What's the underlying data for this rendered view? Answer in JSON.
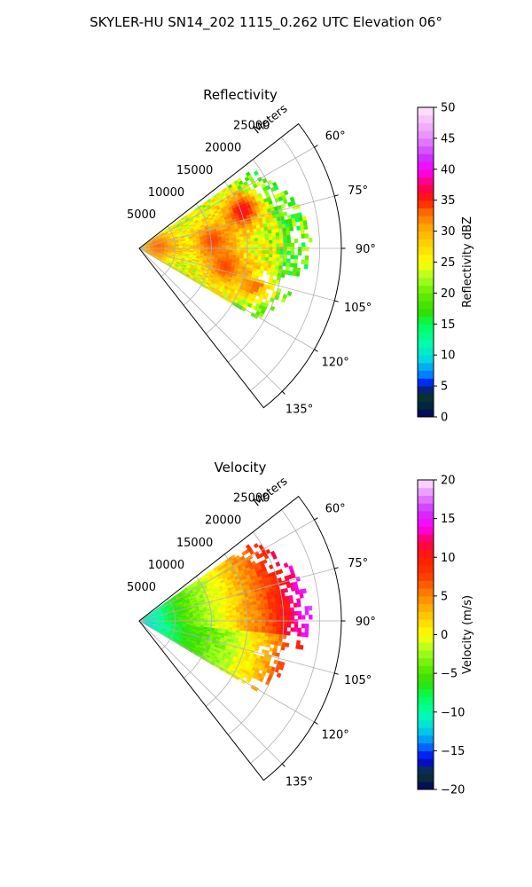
{
  "figure": {
    "title": "SKYLER-HU  SN14_202  1115_0.262 UTC Elevation 06°"
  },
  "chart_data": [
    {
      "type": "heatmap",
      "subtype": "polar-sector",
      "title": "Reflectivity",
      "radial_label": "Meters",
      "radial_ticks": [
        5000,
        10000,
        15000,
        20000,
        25000
      ],
      "radial_tick_labels": [
        "5000",
        "10000",
        "15000",
        "20000",
        "25000"
      ],
      "rmax": 28000,
      "angle_ticks": [
        60,
        75,
        90,
        105,
        120,
        135
      ],
      "angle_tick_labels": [
        "60°",
        "75°",
        "90°",
        "105°",
        "120°",
        "135°"
      ],
      "theta_range": [
        52,
        142
      ],
      "grid": true,
      "colorbar": {
        "label": "Reflectivity dBZ",
        "range": [
          0,
          50
        ],
        "ticks": [
          0,
          5,
          10,
          15,
          20,
          25,
          30,
          35,
          40,
          45,
          50
        ],
        "tick_labels": [
          "0",
          "5",
          "10",
          "15",
          "20",
          "25",
          "30",
          "35",
          "40",
          "45",
          "50"
        ]
      },
      "data_extent": {
        "theta": [
          55,
          120
        ],
        "r_max": 24000
      },
      "typical_values": {
        "background": 23,
        "range": [
          18,
          38
        ]
      },
      "features": [
        {
          "theta": 70,
          "r": 15000,
          "value": 36
        },
        {
          "theta": 84,
          "r": 10000,
          "value": 34
        },
        {
          "theta": 102,
          "r": 12000,
          "value": 34
        },
        {
          "theta": 108,
          "r": 17000,
          "value": 33
        },
        {
          "theta": 85,
          "r": 2500,
          "value": 33
        }
      ]
    },
    {
      "type": "heatmap",
      "subtype": "polar-sector",
      "title": "Velocity",
      "radial_label": "Meters",
      "radial_ticks": [
        5000,
        10000,
        15000,
        20000,
        25000
      ],
      "radial_tick_labels": [
        "5000",
        "10000",
        "15000",
        "20000",
        "25000"
      ],
      "rmax": 28000,
      "angle_ticks": [
        60,
        75,
        90,
        105,
        120,
        135
      ],
      "angle_tick_labels": [
        "60°",
        "75°",
        "90°",
        "105°",
        "120°",
        "135°"
      ],
      "theta_range": [
        52,
        142
      ],
      "grid": true,
      "colorbar": {
        "label": "Velocity (m/s)",
        "range": [
          -20,
          20
        ],
        "ticks": [
          -20,
          -15,
          -10,
          -5,
          0,
          5,
          10,
          15,
          20
        ],
        "tick_labels": [
          "−20",
          "−15",
          "−10",
          "−5",
          "0",
          "5",
          "10",
          "15",
          "20"
        ]
      },
      "data_extent": {
        "theta": [
          55,
          120
        ],
        "r_max": 24000
      },
      "velocity_profile": [
        {
          "r": 1500,
          "value": -11
        },
        {
          "r": 6000,
          "value": -6
        },
        {
          "r": 12000,
          "value": -1
        },
        {
          "r": 17000,
          "value": 4
        },
        {
          "r": 21000,
          "value": 10
        },
        {
          "r": 24000,
          "value": 14
        }
      ]
    }
  ],
  "colors": {
    "reflectivity_scale": [
      [
        0,
        "#00006a"
      ],
      [
        2,
        "#002a3a"
      ],
      [
        4,
        "#0a3a2a"
      ],
      [
        5,
        "#0000ee"
      ],
      [
        7,
        "#0088ff"
      ],
      [
        9.5,
        "#00dddd"
      ],
      [
        12,
        "#00ffaa"
      ],
      [
        15,
        "#00ff55"
      ],
      [
        17,
        "#33dd00"
      ],
      [
        20,
        "#66ee00"
      ],
      [
        22.5,
        "#aaff22"
      ],
      [
        25,
        "#ffff00"
      ],
      [
        28,
        "#ffd200"
      ],
      [
        31,
        "#ffa000"
      ],
      [
        33,
        "#ff6a00"
      ],
      [
        35,
        "#ff1e00"
      ],
      [
        37,
        "#ff0050"
      ],
      [
        40,
        "#ff00ff"
      ],
      [
        42,
        "#cc33ff"
      ],
      [
        45,
        "#e888ff"
      ],
      [
        50,
        "#ffe8ff"
      ]
    ],
    "velocity_scale": [
      [
        -20,
        "#00006a"
      ],
      [
        -18,
        "#0a3a2a"
      ],
      [
        -16,
        "#0000ee"
      ],
      [
        -14,
        "#0088ff"
      ],
      [
        -12,
        "#00dddd"
      ],
      [
        -10,
        "#00ffaa"
      ],
      [
        -8,
        "#00ff55"
      ],
      [
        -6,
        "#33dd00"
      ],
      [
        -4,
        "#66ee00"
      ],
      [
        -2,
        "#aaff22"
      ],
      [
        0,
        "#ffff00"
      ],
      [
        2,
        "#ffd200"
      ],
      [
        4,
        "#ffa000"
      ],
      [
        6,
        "#ff6a00"
      ],
      [
        8,
        "#ff3300"
      ],
      [
        10,
        "#ff1e00"
      ],
      [
        12,
        "#ff0050"
      ],
      [
        14,
        "#ff00ff"
      ],
      [
        16,
        "#cc33ff"
      ],
      [
        18,
        "#e888ff"
      ],
      [
        20,
        "#ffe8ff"
      ]
    ],
    "grid": "#b0b0b0",
    "axes": "#000000"
  }
}
